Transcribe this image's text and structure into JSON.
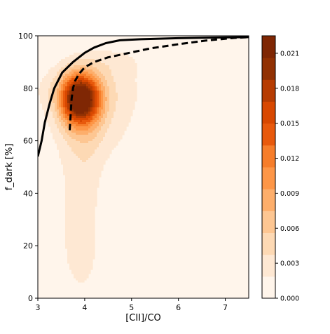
{
  "chart_data": {
    "type": "contour",
    "xlabel": "[CII]/CO",
    "ylabel": "f_dark [%]",
    "xlim": [
      3,
      7.5
    ],
    "ylim": [
      0,
      100
    ],
    "xticks": [
      3,
      4,
      5,
      6,
      7
    ],
    "yticks": [
      0,
      20,
      40,
      60,
      80,
      100
    ],
    "grid": false,
    "legend": "none",
    "density": {
      "peak": {
        "x": 3.9,
        "y": 76,
        "value": 0.022
      },
      "secondary_ridge_x": [
        3.3,
        5.2
      ],
      "background_color": "#fff5eb"
    },
    "colorbar": {
      "range": [
        0,
        0.0225
      ],
      "tick_values": [
        0.0,
        0.003,
        0.006,
        0.009,
        0.012,
        0.015,
        0.018,
        0.021
      ],
      "tick_labels": [
        "0.000",
        "0.003",
        "0.006",
        "0.009",
        "0.012",
        "0.015",
        "0.018",
        "0.021"
      ],
      "colors": [
        "#fff5eb",
        "#fee8d3",
        "#fdd9b4",
        "#fdc692",
        "#fdae6b",
        "#fd9647",
        "#f67d2a",
        "#e8590c",
        "#d84801",
        "#b63c02",
        "#913103",
        "#7f2704"
      ]
    },
    "series": [
      {
        "style": "solid",
        "color": "#000000",
        "x": [
          3.0,
          3.08,
          3.15,
          3.25,
          3.35,
          3.52,
          3.75,
          4.0,
          4.2,
          4.45,
          4.75,
          5.2,
          6.0,
          7.0,
          7.5
        ],
        "y": [
          54,
          60,
          67,
          74,
          80,
          86,
          90,
          93.5,
          95.5,
          97.2,
          98.3,
          98.7,
          99.1,
          99.4,
          99.5
        ]
      },
      {
        "style": "dashed",
        "color": "#000000",
        "x": [
          3.68,
          3.7,
          3.72,
          3.75,
          3.8,
          3.88,
          4.0,
          4.2,
          4.5,
          4.9,
          5.4,
          6.0,
          6.6,
          7.2,
          7.5
        ],
        "y": [
          64,
          70,
          76,
          80,
          83,
          85.5,
          88,
          90,
          91.8,
          93.3,
          95.2,
          96.8,
          98.2,
          99.2,
          99.5
        ]
      }
    ]
  }
}
